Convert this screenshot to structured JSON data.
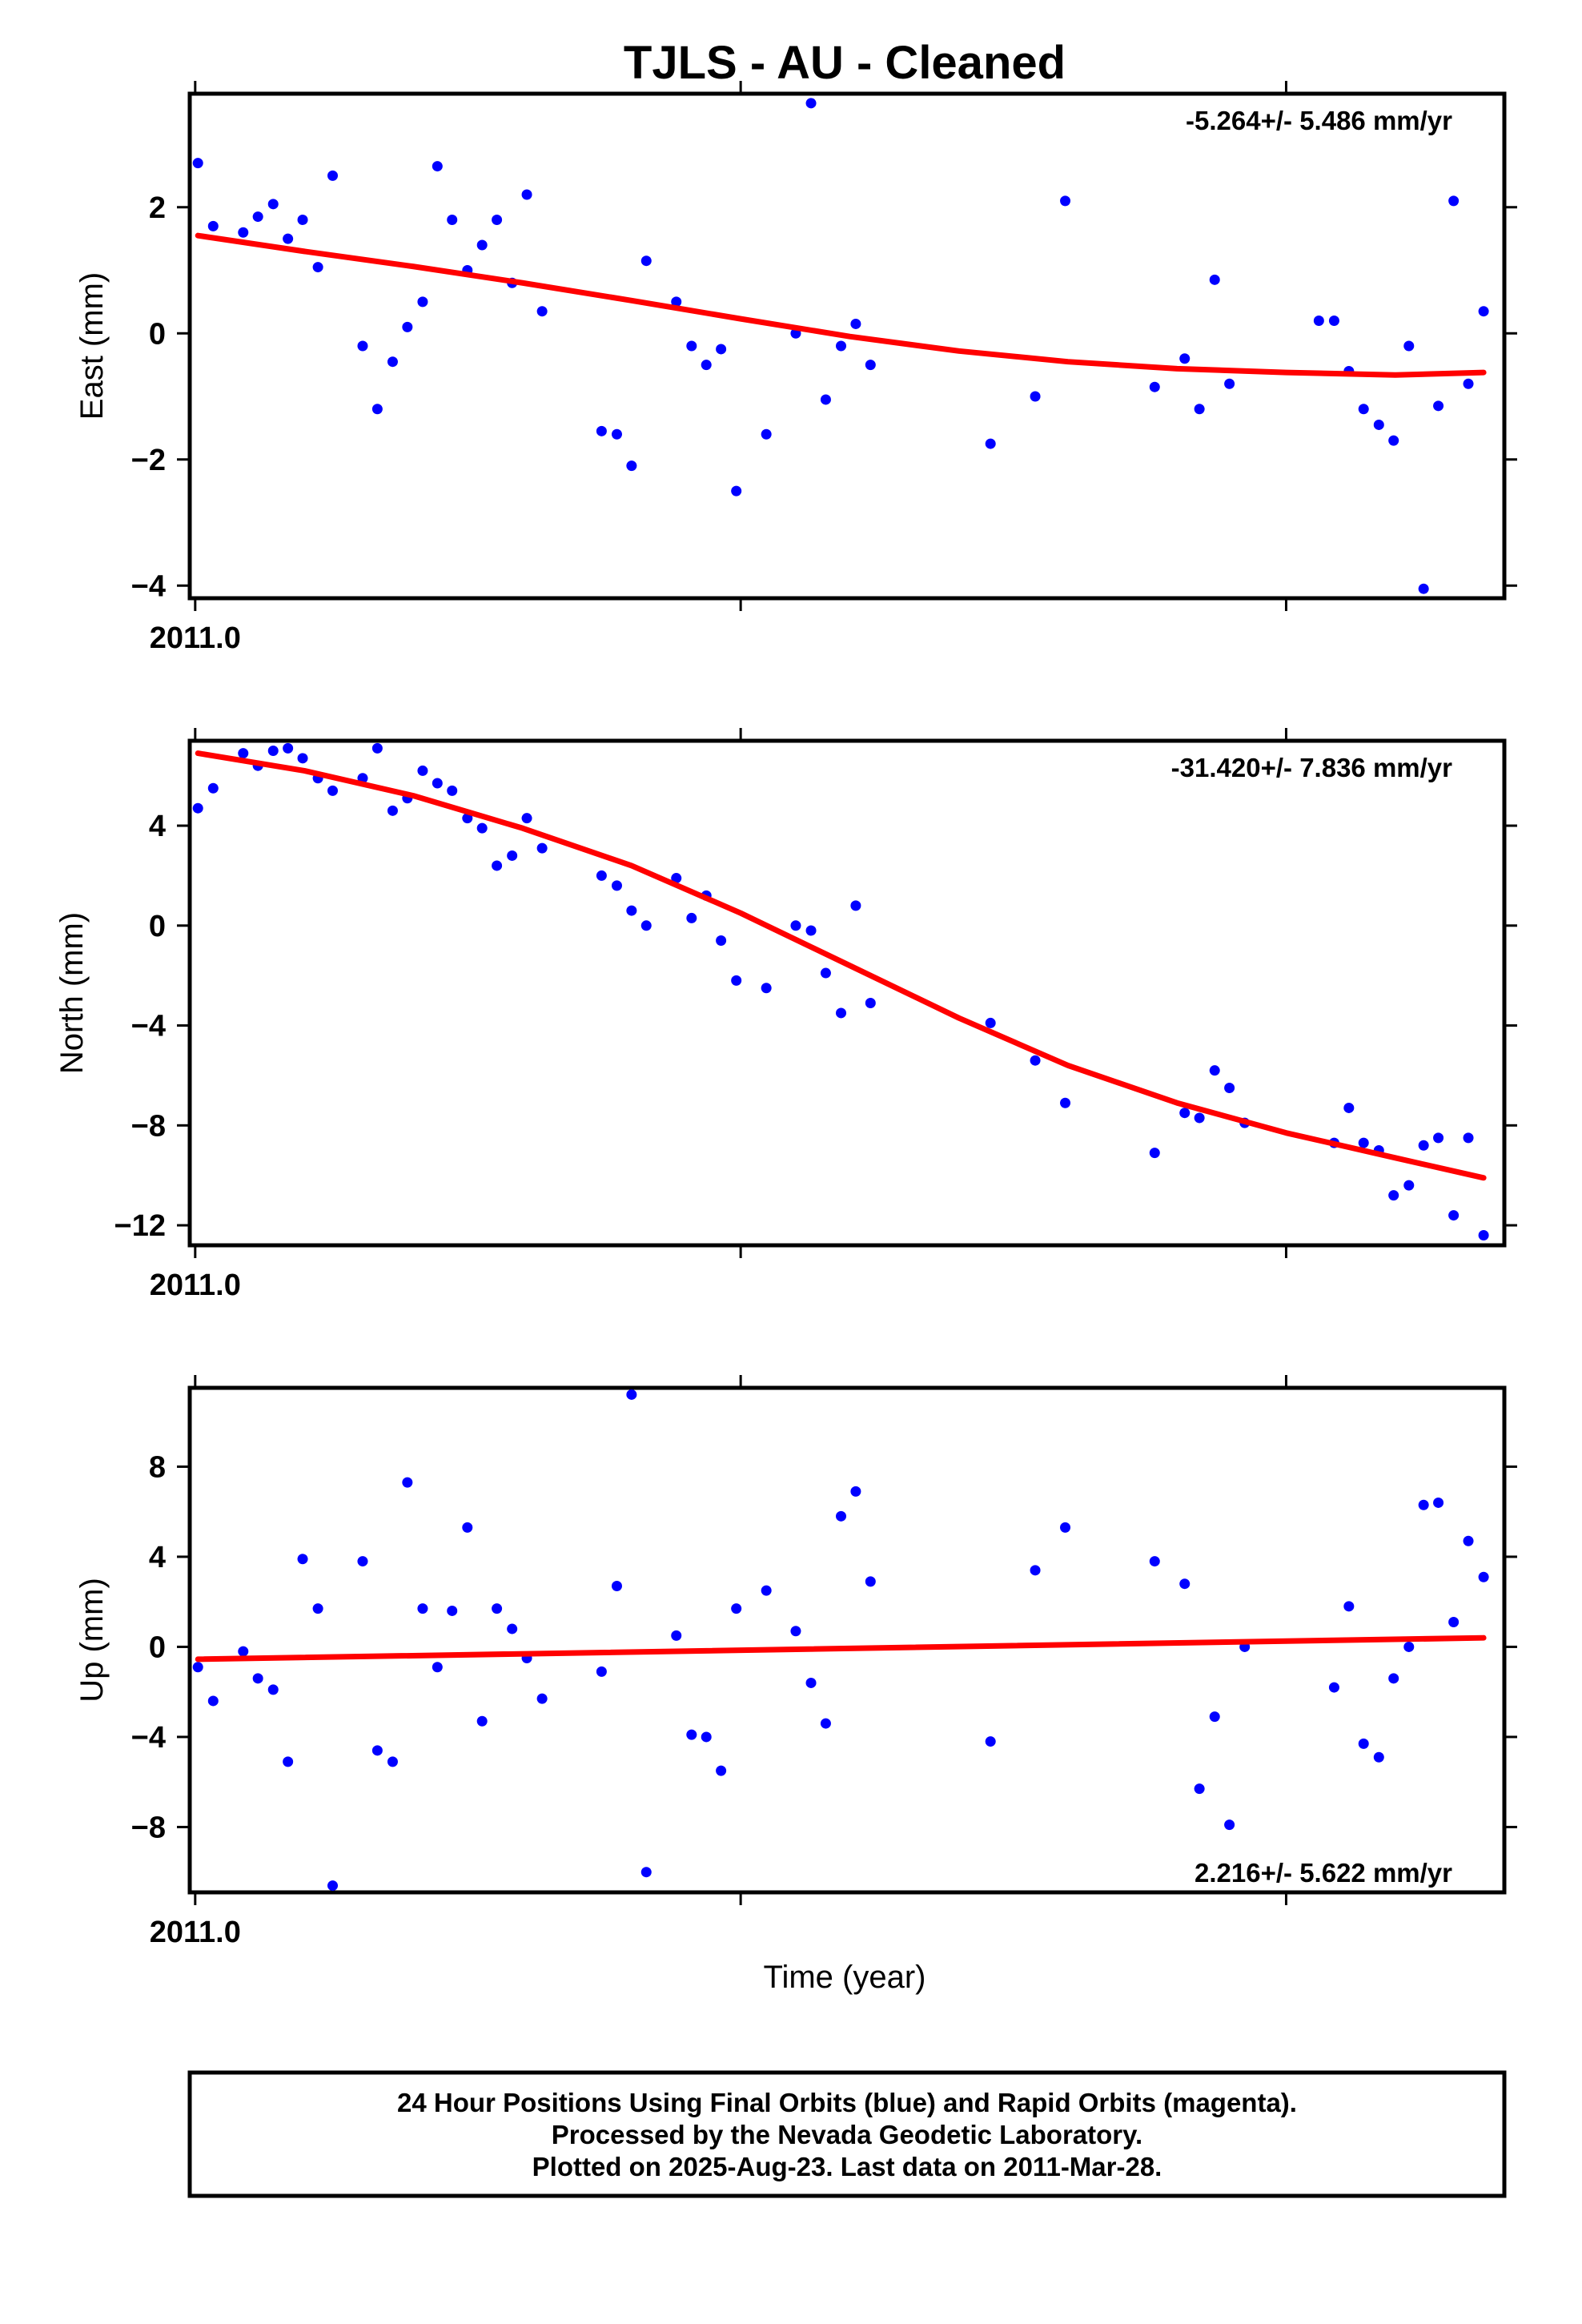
{
  "title": "TJLS  - AU - Cleaned",
  "xlabel": "Time (year)",
  "footer": [
    "24 Hour Positions Using Final Orbits (blue) and Rapid Orbits (magenta).",
    "Processed by the Nevada Geodetic Laboratory.",
    "Plotted on 2025-Aug-23. Last data on 2011-Mar-28."
  ],
  "colors": {
    "points": "#0000ff",
    "fit": "#ff0000",
    "frame": "#000000"
  },
  "chart_data": [
    {
      "type": "scatter",
      "ylabel": "East (mm)",
      "rate": "-5.264+/- 5.486 mm/yr",
      "rate_position": "top-right",
      "x_tick_label": "2011.0",
      "xlim": [
        2010.999,
        2011.24
      ],
      "ylim": [
        -4.2,
        3.8
      ],
      "yticks": [
        2,
        0,
        -2,
        -4
      ],
      "ytick_labels": [
        "2",
        "0",
        "−2",
        "−4"
      ],
      "xticks": [
        2011.0,
        2011.1,
        2011.2
      ],
      "x": [
        2011.0005,
        2011.0033,
        2011.0088,
        2011.0115,
        2011.0143,
        2011.017,
        2011.0197,
        2011.0225,
        2011.0252,
        2011.0307,
        2011.0334,
        2011.0362,
        2011.0389,
        2011.0417,
        2011.0444,
        2011.0471,
        2011.0499,
        2011.0526,
        2011.0553,
        2011.0581,
        2011.0608,
        2011.0636,
        2011.0745,
        2011.0773,
        2011.08,
        2011.0827,
        2011.0882,
        2011.091,
        2011.0937,
        2011.0964,
        2011.0992,
        2011.1047,
        2011.1101,
        2011.1129,
        2011.1156,
        2011.1184,
        2011.1211,
        2011.1238,
        2011.1458,
        2011.154,
        2011.1595,
        2011.1759,
        2011.1814,
        2011.1841,
        2011.1869,
        2011.1896,
        2011.206,
        2011.2088,
        2011.2115,
        2011.2142,
        2011.217,
        2011.2197,
        2011.2225,
        2011.2252,
        2011.2279,
        2011.2307,
        2011.2334,
        2011.2362
      ],
      "y": [
        2.7,
        1.7,
        1.6,
        1.85,
        2.05,
        1.5,
        1.8,
        1.05,
        2.5,
        -0.2,
        -1.2,
        -0.45,
        0.1,
        0.5,
        2.65,
        1.8,
        1.0,
        1.4,
        1.8,
        0.8,
        2.2,
        0.35,
        -1.55,
        -1.6,
        -2.1,
        1.15,
        0.5,
        -0.2,
        -0.5,
        -0.25,
        -2.5,
        -1.6,
        0.0,
        3.65,
        -1.05,
        -0.2,
        0.15,
        -0.5,
        -1.75,
        -1.0,
        2.1,
        -0.85,
        -0.4,
        -1.2,
        0.85,
        -0.8,
        0.2,
        0.2,
        -0.6,
        -1.2,
        -1.45,
        -1.7,
        -0.2,
        -4.05,
        -1.15,
        2.1,
        -0.8,
        0.35
      ],
      "fit": {
        "x": [
          2011.0005,
          2011.02,
          2011.04,
          2011.06,
          2011.08,
          2011.1,
          2011.12,
          2011.14,
          2011.16,
          2011.18,
          2011.2,
          2011.22,
          2011.2362
        ],
        "y": [
          1.55,
          1.3,
          1.06,
          0.8,
          0.52,
          0.23,
          -0.05,
          -0.28,
          -0.45,
          -0.56,
          -0.62,
          -0.66,
          -0.62
        ]
      }
    },
    {
      "type": "scatter",
      "ylabel": "North (mm)",
      "rate": "-31.420+/- 7.836 mm/yr",
      "rate_position": "top-right",
      "x_tick_label": "2011.0",
      "xlim": [
        2010.999,
        2011.24
      ],
      "ylim": [
        -12.8,
        7.4
      ],
      "yticks": [
        4,
        0,
        -4,
        -8,
        -12
      ],
      "ytick_labels": [
        "4",
        "0",
        "−4",
        "−8",
        "−12"
      ],
      "xticks": [
        2011.0,
        2011.1,
        2011.2
      ],
      "x": [
        2011.0005,
        2011.0033,
        2011.0088,
        2011.0115,
        2011.0143,
        2011.017,
        2011.0197,
        2011.0225,
        2011.0252,
        2011.0307,
        2011.0334,
        2011.0362,
        2011.0389,
        2011.0417,
        2011.0444,
        2011.0471,
        2011.0499,
        2011.0526,
        2011.0553,
        2011.0581,
        2011.0608,
        2011.0636,
        2011.0745,
        2011.0773,
        2011.08,
        2011.0827,
        2011.0882,
        2011.091,
        2011.0937,
        2011.0964,
        2011.0992,
        2011.1047,
        2011.1101,
        2011.1129,
        2011.1156,
        2011.1184,
        2011.1211,
        2011.1238,
        2011.1458,
        2011.154,
        2011.1595,
        2011.1759,
        2011.1814,
        2011.1841,
        2011.1869,
        2011.1896,
        2011.1924,
        2011.2088,
        2011.2115,
        2011.2142,
        2011.217,
        2011.2197,
        2011.2225,
        2011.2252,
        2011.2279,
        2011.2307,
        2011.2334,
        2011.2362
      ],
      "y": [
        4.7,
        5.5,
        6.9,
        6.4,
        7.0,
        7.1,
        6.7,
        5.9,
        5.4,
        5.9,
        7.1,
        4.6,
        5.1,
        6.2,
        5.7,
        5.4,
        4.3,
        3.9,
        2.4,
        2.8,
        4.3,
        3.1,
        2.0,
        1.6,
        0.6,
        0.0,
        1.9,
        0.3,
        1.2,
        -0.6,
        -2.2,
        -2.5,
        0.0,
        -0.2,
        -1.9,
        -3.5,
        0.8,
        -3.1,
        -3.9,
        -5.4,
        -7.1,
        -9.1,
        -7.5,
        -7.7,
        -5.8,
        -6.5,
        -7.9,
        -8.7,
        -7.3,
        -8.7,
        -9.0,
        -10.8,
        -10.4,
        -8.8,
        -8.5,
        -11.6,
        -8.5,
        -12.4
      ],
      "fit": {
        "x": [
          2011.0005,
          2011.02,
          2011.04,
          2011.06,
          2011.08,
          2011.1,
          2011.12,
          2011.14,
          2011.16,
          2011.18,
          2011.2,
          2011.22,
          2011.2362
        ],
        "y": [
          6.9,
          6.2,
          5.2,
          3.9,
          2.4,
          0.5,
          -1.6,
          -3.7,
          -5.6,
          -7.1,
          -8.3,
          -9.3,
          -10.1
        ]
      }
    },
    {
      "type": "scatter",
      "ylabel": "Up (mm)",
      "rate": "2.216+/- 5.622 mm/yr",
      "rate_position": "bottom-right",
      "x_tick_label": "2011.0",
      "xlim": [
        2010.999,
        2011.24
      ],
      "ylim": [
        -10.9,
        11.5
      ],
      "yticks": [
        8,
        4,
        0,
        -4,
        -8
      ],
      "ytick_labels": [
        "8",
        "4",
        "0",
        "−4",
        "−8"
      ],
      "xticks": [
        2011.0,
        2011.1,
        2011.2
      ],
      "x": [
        2011.0005,
        2011.0033,
        2011.0088,
        2011.0115,
        2011.0143,
        2011.017,
        2011.0197,
        2011.0225,
        2011.0252,
        2011.0307,
        2011.0334,
        2011.0362,
        2011.0389,
        2011.0417,
        2011.0444,
        2011.0471,
        2011.0499,
        2011.0526,
        2011.0553,
        2011.0581,
        2011.0608,
        2011.0636,
        2011.0745,
        2011.0773,
        2011.08,
        2011.0827,
        2011.0882,
        2011.091,
        2011.0937,
        2011.0964,
        2011.0992,
        2011.1047,
        2011.1101,
        2011.1129,
        2011.1156,
        2011.1184,
        2011.1211,
        2011.1238,
        2011.1458,
        2011.154,
        2011.1595,
        2011.1759,
        2011.1814,
        2011.1841,
        2011.1869,
        2011.1896,
        2011.1924,
        2011.2088,
        2011.2115,
        2011.2142,
        2011.217,
        2011.2197,
        2011.2225,
        2011.2252,
        2011.2279,
        2011.2307,
        2011.2334,
        2011.2362
      ],
      "y": [
        -0.9,
        -2.4,
        -0.2,
        -1.4,
        -1.9,
        -5.1,
        3.9,
        1.7,
        -10.6,
        3.8,
        -4.6,
        -5.1,
        7.3,
        1.7,
        -0.9,
        1.6,
        5.3,
        -3.3,
        1.7,
        0.8,
        -0.5,
        -2.3,
        -1.1,
        2.7,
        11.2,
        -10.0,
        0.5,
        -3.9,
        -4.0,
        -5.5,
        1.7,
        2.5,
        0.7,
        -1.6,
        -3.4,
        5.8,
        6.9,
        2.9,
        -4.2,
        3.4,
        5.3,
        3.8,
        2.8,
        -6.3,
        -3.1,
        -7.9,
        0.0,
        -1.8,
        1.8,
        -4.3,
        -4.9,
        -1.4,
        0.0,
        6.3,
        6.4,
        1.1,
        4.7,
        3.1
      ],
      "fit": {
        "x": [
          2011.0005,
          2011.2362
        ],
        "y": [
          -0.55,
          0.4
        ]
      }
    }
  ]
}
